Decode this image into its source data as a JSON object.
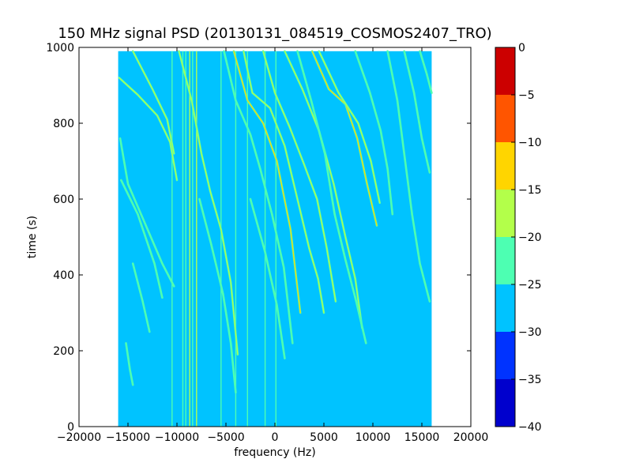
{
  "chart_data": {
    "type": "heatmap",
    "title": "150 MHz signal PSD (20130131_084519_COSMOS2407_TRO)",
    "xlabel": "frequency (Hz)",
    "ylabel": "time (s)",
    "xlim": [
      -20000,
      20000
    ],
    "ylim": [
      0,
      1000
    ],
    "xticks": [
      -20000,
      -15000,
      -10000,
      -5000,
      0,
      5000,
      10000,
      15000,
      20000
    ],
    "xtick_labels": [
      "−20000",
      "−15000",
      "−10000",
      "−5000",
      "0",
      "5000",
      "10000",
      "15000",
      "20000"
    ],
    "yticks": [
      0,
      200,
      400,
      600,
      800,
      1000
    ],
    "ytick_labels": [
      "0",
      "200",
      "400",
      "600",
      "800",
      "1000"
    ],
    "data_extent": {
      "x": [
        -16000,
        16000
      ],
      "y": [
        0,
        990
      ]
    },
    "background_level": -27.5,
    "colorbar": {
      "levels": [
        -40,
        -35,
        -30,
        -25,
        -20,
        -15,
        -10,
        -5,
        0
      ],
      "tick_labels": [
        "−40",
        "−35",
        "−30",
        "−25",
        "−20",
        "−15",
        "−10",
        "−5",
        "0"
      ],
      "colors": [
        "#0000cd",
        "#0033ff",
        "#00c3ff",
        "#4dffb2",
        "#b3ff4a",
        "#ffd500",
        "#ff5500",
        "#cc0000"
      ]
    },
    "vertical_lines": [
      {
        "x": -9400,
        "level": -22.5
      },
      {
        "x": -9100,
        "level": -22.5
      },
      {
        "x": -8700,
        "level": -17.5
      },
      {
        "x": -8400,
        "level": -22.5
      },
      {
        "x": -8000,
        "level": -17.5
      },
      {
        "x": -5500,
        "level": -22.5
      },
      {
        "x": -4000,
        "level": -22.5
      },
      {
        "x": -2800,
        "level": -22.5
      },
      {
        "x": -1000,
        "level": -22.5
      },
      {
        "x": -10500,
        "level": -22.5
      },
      {
        "x": 100,
        "level": -22.5
      }
    ],
    "tracks": [
      {
        "points": [
          [
            -15900,
            920
          ],
          [
            -14000,
            875
          ],
          [
            -12000,
            820
          ],
          [
            -10700,
            750
          ],
          [
            -10000,
            650
          ]
        ],
        "level": -17.5
      },
      {
        "points": [
          [
            -14500,
            990
          ],
          [
            -12500,
            890
          ],
          [
            -11000,
            810
          ],
          [
            -10300,
            720
          ]
        ],
        "level": -17.5
      },
      {
        "points": [
          [
            -15800,
            760
          ],
          [
            -15000,
            640
          ],
          [
            -13000,
            520
          ],
          [
            -11500,
            430
          ],
          [
            -10300,
            370
          ]
        ],
        "level": -22.5
      },
      {
        "points": [
          [
            -15700,
            650
          ],
          [
            -14000,
            560
          ],
          [
            -12300,
            430
          ],
          [
            -11500,
            340
          ]
        ],
        "level": -22.5
      },
      {
        "points": [
          [
            -9800,
            990
          ],
          [
            -8500,
            860
          ],
          [
            -7500,
            720
          ],
          [
            -6600,
            620
          ],
          [
            -5500,
            520
          ],
          [
            -4500,
            380
          ],
          [
            -3800,
            190
          ]
        ],
        "level": -17.5
      },
      {
        "points": [
          [
            -5200,
            990
          ],
          [
            -4000,
            860
          ],
          [
            -2500,
            770
          ],
          [
            -1500,
            680
          ],
          [
            -300,
            560
          ],
          [
            900,
            420
          ],
          [
            1800,
            220
          ]
        ],
        "level": -22.5
      },
      {
        "points": [
          [
            -4200,
            990
          ],
          [
            -2800,
            860
          ],
          [
            -1200,
            800
          ],
          [
            200,
            700
          ],
          [
            1600,
            520
          ],
          [
            2600,
            300
          ]
        ],
        "level": -12.5
      },
      {
        "points": [
          [
            -3200,
            990
          ],
          [
            -2300,
            880
          ],
          [
            -500,
            840
          ],
          [
            1000,
            740
          ],
          [
            2300,
            600
          ],
          [
            3500,
            470
          ],
          [
            4400,
            390
          ],
          [
            5000,
            300
          ]
        ],
        "level": -17.5
      },
      {
        "points": [
          [
            -1200,
            990
          ],
          [
            0,
            880
          ],
          [
            1500,
            790
          ],
          [
            3000,
            690
          ],
          [
            4300,
            600
          ],
          [
            5300,
            470
          ],
          [
            6200,
            330
          ]
        ],
        "level": -17.5
      },
      {
        "points": [
          [
            1000,
            990
          ],
          [
            2800,
            890
          ],
          [
            4500,
            780
          ],
          [
            6000,
            640
          ],
          [
            7200,
            500
          ],
          [
            8200,
            390
          ],
          [
            8900,
            260
          ]
        ],
        "level": -17.5
      },
      {
        "points": [
          [
            2300,
            990
          ],
          [
            3700,
            860
          ],
          [
            5100,
            720
          ],
          [
            6100,
            560
          ],
          [
            7200,
            440
          ],
          [
            8300,
            330
          ],
          [
            9300,
            220
          ]
        ],
        "level": -22.5
      },
      {
        "points": [
          [
            3800,
            990
          ],
          [
            5500,
            890
          ],
          [
            7200,
            850
          ],
          [
            8400,
            760
          ],
          [
            9400,
            640
          ],
          [
            10400,
            530
          ]
        ],
        "level": -12.5
      },
      {
        "points": [
          [
            4500,
            990
          ],
          [
            6500,
            880
          ],
          [
            8500,
            800
          ],
          [
            9800,
            700
          ],
          [
            10700,
            590
          ]
        ],
        "level": -17.5
      },
      {
        "points": [
          [
            8200,
            990
          ],
          [
            9700,
            880
          ],
          [
            10800,
            780
          ],
          [
            11500,
            680
          ],
          [
            12000,
            560
          ]
        ],
        "level": -22.5
      },
      {
        "points": [
          [
            11500,
            990
          ],
          [
            12500,
            860
          ],
          [
            13300,
            700
          ],
          [
            14000,
            560
          ],
          [
            14800,
            430
          ],
          [
            15800,
            330
          ]
        ],
        "level": -22.5
      },
      {
        "points": [
          [
            13200,
            990
          ],
          [
            14200,
            880
          ],
          [
            15000,
            760
          ],
          [
            15800,
            670
          ]
        ],
        "level": -22.5
      },
      {
        "points": [
          [
            14800,
            990
          ],
          [
            15500,
            930
          ],
          [
            16000,
            880
          ]
        ],
        "level": -22.5
      },
      {
        "points": [
          [
            -7700,
            600
          ],
          [
            -6500,
            480
          ],
          [
            -5300,
            350
          ],
          [
            -4500,
            220
          ],
          [
            -4000,
            90
          ]
        ],
        "level": -22.5
      },
      {
        "points": [
          [
            -2500,
            600
          ],
          [
            -1000,
            460
          ],
          [
            200,
            320
          ],
          [
            1000,
            180
          ]
        ],
        "level": -22.5
      },
      {
        "points": [
          [
            -14500,
            430
          ],
          [
            -13500,
            330
          ],
          [
            -12800,
            250
          ]
        ],
        "level": -22.5
      },
      {
        "points": [
          [
            -15200,
            220
          ],
          [
            -14800,
            150
          ],
          [
            -14500,
            110
          ]
        ],
        "level": -22.5
      }
    ]
  }
}
